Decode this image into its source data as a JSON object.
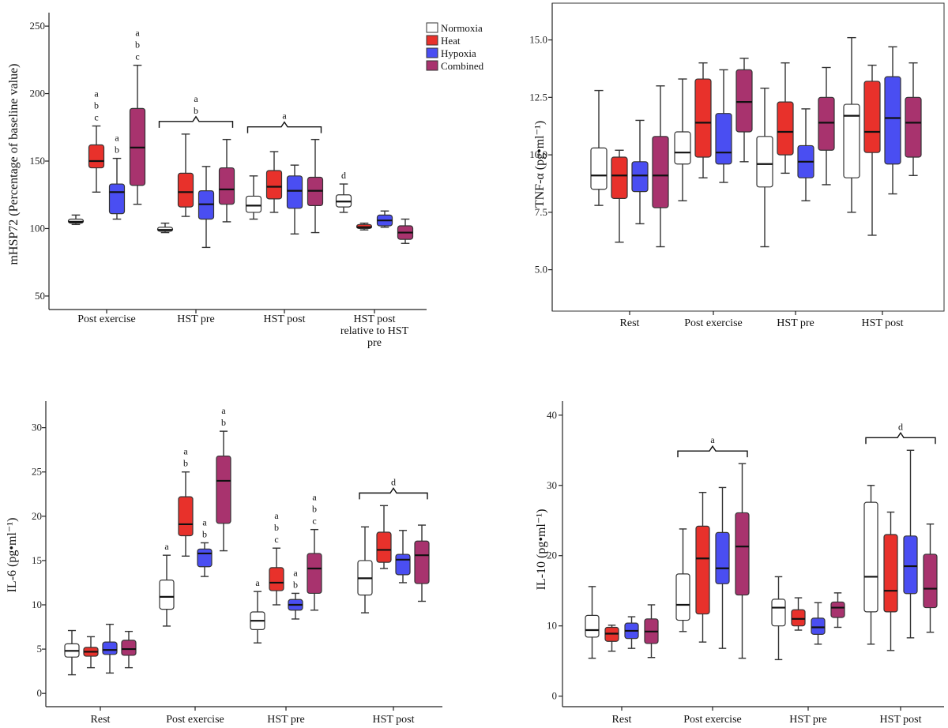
{
  "colors": {
    "Normoxia": "#ffffff",
    "Heat": "#e8312b",
    "Hypoxia": "#4a4ef2",
    "Combined": "#a8336e"
  },
  "legend": [
    "Normoxia",
    "Heat",
    "Hypoxia",
    "Combined"
  ],
  "chart_data": [
    {
      "id": "p1",
      "type": "boxplot",
      "ylabel": "mHSP72 (Percentage of baseline value)",
      "ylim": [
        40,
        260
      ],
      "yticks": [
        50,
        100,
        150,
        200,
        250
      ],
      "categories": [
        [
          "Post exercise"
        ],
        [
          "HST pre"
        ],
        [
          "HST post"
        ],
        [
          "HST post",
          "relative to HST",
          "pre"
        ]
      ],
      "series": [
        "Normoxia",
        "Heat",
        "Hypoxia",
        "Combined"
      ],
      "boxes": [
        [
          [
            103,
            104,
            105,
            107,
            110
          ],
          [
            127,
            145,
            150,
            162,
            176
          ],
          [
            107,
            111,
            127,
            133,
            152
          ],
          [
            118,
            132,
            160,
            189,
            221
          ]
        ],
        [
          [
            97,
            98,
            99,
            101,
            104
          ],
          [
            109,
            116,
            127,
            141,
            170
          ],
          [
            86,
            107,
            118,
            128,
            146
          ],
          [
            105,
            118,
            129,
            145,
            166
          ]
        ],
        [
          [
            107,
            112,
            117,
            124,
            139
          ],
          [
            112,
            122,
            131,
            143,
            157
          ],
          [
            96,
            115,
            128,
            139,
            147
          ],
          [
            97,
            117,
            128,
            138,
            166
          ]
        ],
        [
          [
            112,
            116,
            120,
            125,
            133
          ],
          [
            99,
            100,
            101,
            103,
            104
          ],
          [
            101,
            102,
            106,
            110,
            113
          ],
          [
            89,
            92,
            97,
            102,
            107
          ]
        ]
      ],
      "annotations": [
        {
          "cat": 0,
          "box": 1,
          "text": [
            "a",
            "b",
            "c"
          ]
        },
        {
          "cat": 0,
          "box": 2,
          "text": [
            "a",
            "b"
          ]
        },
        {
          "cat": 0,
          "box": 3,
          "text": [
            "a",
            "b",
            "c"
          ]
        },
        {
          "cat": 1,
          "bracket": true,
          "text": [
            "a",
            "b"
          ]
        },
        {
          "cat": 2,
          "bracket": true,
          "text": [
            "a"
          ]
        },
        {
          "cat": 3,
          "box": 0,
          "text": [
            "d"
          ]
        }
      ]
    },
    {
      "id": "p2",
      "type": "boxplot",
      "ylabel": "TNF-α (pg•ml⁻¹)",
      "ylim": [
        3.2,
        16.6
      ],
      "yticks": [
        5.0,
        7.5,
        10.0,
        12.5,
        15.0
      ],
      "categories": [
        [
          "Rest"
        ],
        [
          "Post exercise"
        ],
        [
          "HST pre"
        ],
        [
          "HST post"
        ]
      ],
      "series": [
        "Normoxia",
        "Heat",
        "Hypoxia",
        "Combined"
      ],
      "boxes": [
        [
          [
            7.8,
            8.5,
            9.1,
            10.3,
            12.8
          ],
          [
            6.2,
            8.1,
            9.1,
            9.9,
            10.2
          ],
          [
            7.0,
            8.4,
            9.1,
            9.7,
            11.5
          ],
          [
            6.0,
            7.7,
            9.1,
            10.8,
            13.0
          ]
        ],
        [
          [
            8.0,
            9.6,
            10.1,
            11.0,
            13.3
          ],
          [
            9.0,
            9.9,
            11.4,
            13.3,
            14.0
          ],
          [
            8.8,
            9.6,
            10.1,
            11.8,
            13.7
          ],
          [
            9.7,
            11.0,
            12.3,
            13.7,
            14.2
          ]
        ],
        [
          [
            6.0,
            8.6,
            9.6,
            10.8,
            12.9
          ],
          [
            9.2,
            10.0,
            11.0,
            12.3,
            14.0
          ],
          [
            8.0,
            9.0,
            9.7,
            10.4,
            12.0
          ],
          [
            8.7,
            10.2,
            11.4,
            12.5,
            13.8
          ]
        ],
        [
          [
            7.5,
            9.0,
            11.7,
            12.2,
            15.1
          ],
          [
            6.5,
            10.1,
            11.0,
            13.2,
            13.9
          ],
          [
            8.3,
            9.6,
            11.6,
            13.4,
            14.7
          ],
          [
            9.1,
            9.9,
            11.4,
            12.5,
            14.0
          ]
        ]
      ],
      "annotations": []
    },
    {
      "id": "p3",
      "type": "boxplot",
      "ylabel": "IL-6 (pg•ml⁻¹)",
      "ylim": [
        -1.5,
        33
      ],
      "yticks": [
        0,
        5,
        10,
        15,
        20,
        25,
        30
      ],
      "categories": [
        [
          "Rest"
        ],
        [
          "Post exercise"
        ],
        [
          "HST pre"
        ],
        [
          "HST post"
        ]
      ],
      "series": [
        "Normoxia",
        "Heat",
        "Hypoxia",
        "Combined"
      ],
      "boxes": [
        [
          [
            2.1,
            4.1,
            4.8,
            5.6,
            7.1
          ],
          [
            2.9,
            4.2,
            4.7,
            5.2,
            6.4
          ],
          [
            2.3,
            4.4,
            4.9,
            5.8,
            7.8
          ],
          [
            2.9,
            4.3,
            5.0,
            6.0,
            7.0
          ]
        ],
        [
          [
            7.6,
            9.5,
            10.9,
            12.8,
            15.6
          ],
          [
            15.5,
            17.8,
            19.1,
            22.2,
            25.0
          ],
          [
            13.2,
            14.3,
            15.8,
            16.3,
            17.0
          ],
          [
            16.1,
            19.2,
            24.0,
            26.8,
            29.6
          ]
        ],
        [
          [
            5.7,
            7.2,
            8.2,
            9.2,
            11.5
          ],
          [
            10.0,
            11.6,
            12.5,
            14.2,
            16.4
          ],
          [
            8.4,
            9.4,
            10.0,
            10.6,
            11.3
          ],
          [
            9.4,
            11.3,
            14.1,
            15.8,
            18.5
          ]
        ],
        [
          [
            9.1,
            11.1,
            13.0,
            15.0,
            18.8
          ],
          [
            14.1,
            14.8,
            16.2,
            18.2,
            21.2
          ],
          [
            12.5,
            13.4,
            15.1,
            15.7,
            18.4
          ],
          [
            10.4,
            12.4,
            15.6,
            17.2,
            19.0
          ]
        ]
      ],
      "annotations": [
        {
          "cat": 1,
          "box": 0,
          "text": [
            "a"
          ]
        },
        {
          "cat": 1,
          "box": 1,
          "text": [
            "a",
            "b"
          ]
        },
        {
          "cat": 1,
          "box": 2,
          "text": [
            "a",
            "b"
          ]
        },
        {
          "cat": 1,
          "box": 3,
          "text": [
            "a",
            "b"
          ]
        },
        {
          "cat": 2,
          "box": 0,
          "text": [
            "a"
          ]
        },
        {
          "cat": 2,
          "box": 1,
          "text": [
            "a",
            "b",
            "c"
          ]
        },
        {
          "cat": 2,
          "box": 2,
          "text": [
            "a",
            "b"
          ]
        },
        {
          "cat": 2,
          "box": 3,
          "text": [
            "a",
            "b",
            "c"
          ]
        },
        {
          "cat": 3,
          "bracket": true,
          "text": [
            "d"
          ]
        }
      ]
    },
    {
      "id": "p4",
      "type": "boxplot",
      "ylabel": "IL-10 (pg•ml⁻¹)",
      "ylim": [
        -1.5,
        42
      ],
      "yticks": [
        0,
        10,
        20,
        30,
        40
      ],
      "categories": [
        [
          "Rest"
        ],
        [
          "Post exercise"
        ],
        [
          "HST pre"
        ],
        [
          "HST post"
        ]
      ],
      "series": [
        "Normoxia",
        "Heat",
        "Hypoxia",
        "Combined"
      ],
      "boxes": [
        [
          [
            5.4,
            8.4,
            9.4,
            11.5,
            15.6
          ],
          [
            6.4,
            7.8,
            8.9,
            9.8,
            10.1
          ],
          [
            6.8,
            8.2,
            9.3,
            10.4,
            11.3
          ],
          [
            5.5,
            7.5,
            9.2,
            11.0,
            13.0
          ]
        ],
        [
          [
            9.2,
            10.8,
            13.0,
            17.4,
            23.8
          ],
          [
            7.7,
            11.7,
            19.6,
            24.2,
            29.0
          ],
          [
            6.8,
            16.0,
            18.2,
            23.3,
            29.7
          ],
          [
            5.4,
            14.4,
            21.3,
            26.1,
            33.1
          ]
        ],
        [
          [
            5.2,
            10.0,
            12.6,
            13.8,
            17.0
          ],
          [
            9.4,
            10.0,
            11.0,
            12.3,
            14.0
          ],
          [
            7.4,
            8.8,
            9.8,
            11.1,
            13.3
          ],
          [
            9.8,
            11.2,
            12.6,
            13.4,
            14.7
          ]
        ],
        [
          [
            7.4,
            12.0,
            17.0,
            27.6,
            30.0
          ],
          [
            6.5,
            12.0,
            15.0,
            23.0,
            26.2
          ],
          [
            8.3,
            14.6,
            18.5,
            22.8,
            35.0
          ],
          [
            9.1,
            12.6,
            15.3,
            20.2,
            24.5
          ]
        ]
      ],
      "annotations": [
        {
          "cat": 1,
          "bracket": true,
          "text": [
            "a"
          ]
        },
        {
          "cat": 3,
          "bracket": true,
          "text": [
            "d"
          ]
        }
      ]
    }
  ]
}
